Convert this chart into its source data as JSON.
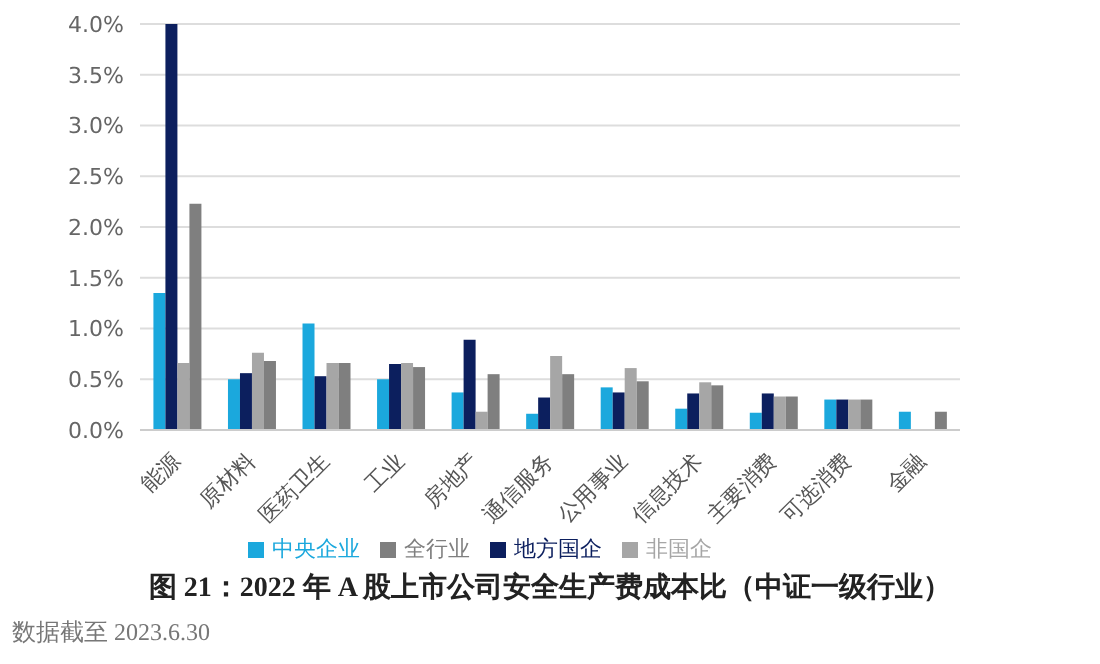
{
  "chart_data": {
    "type": "bar",
    "title": "图 21：2022 年 A 股上市公司安全生产费成本比（中证一级行业）",
    "annotations": [
      "数据截至 2023.6.30"
    ],
    "categories": [
      "能源",
      "原材料",
      "医药卫生",
      "工业",
      "房地产",
      "通信服务",
      "公用事业",
      "信息技术",
      "主要消费",
      "可选消费",
      "金融"
    ],
    "series": [
      {
        "name": "中央企业",
        "color": "#1ba8dd",
        "values": [
          1.35,
          0.5,
          1.05,
          0.5,
          0.37,
          0.16,
          0.42,
          0.21,
          0.17,
          0.3,
          0.18
        ]
      },
      {
        "name": "地方国企",
        "color": "#0c1f5e",
        "values": [
          4.0,
          0.56,
          0.53,
          0.65,
          0.89,
          0.32,
          0.37,
          0.36,
          0.36,
          0.3,
          null
        ]
      },
      {
        "name": "非国企",
        "color": "#a6a6a6",
        "values": [
          0.66,
          0.76,
          0.66,
          0.66,
          0.18,
          0.73,
          0.61,
          0.47,
          0.33,
          0.3,
          null
        ]
      },
      {
        "name": "全行业",
        "color": "#7f7f7f",
        "values": [
          2.23,
          0.68,
          0.66,
          0.62,
          0.55,
          0.55,
          0.48,
          0.44,
          0.33,
          0.3,
          0.18
        ]
      }
    ],
    "ylim": [
      0,
      4.0
    ],
    "yticks": [
      {
        "value": 0,
        "label": "0.0%"
      },
      {
        "value": 0.5,
        "label": "0.5%"
      },
      {
        "value": 1,
        "label": "1.0%"
      },
      {
        "value": 1.5,
        "label": "1.5%"
      },
      {
        "value": 2,
        "label": "2.0%"
      },
      {
        "value": 2.5,
        "label": "2.5%"
      },
      {
        "value": 3,
        "label": "3.0%"
      },
      {
        "value": 3.5,
        "label": "3.5%"
      },
      {
        "value": 4,
        "label": "4.0%"
      }
    ],
    "grid": "y",
    "legend": "bottom"
  }
}
